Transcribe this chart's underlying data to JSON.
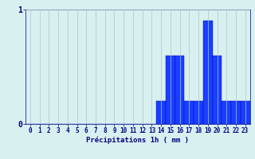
{
  "hours": [
    0,
    1,
    2,
    3,
    4,
    5,
    6,
    7,
    8,
    9,
    10,
    11,
    12,
    13,
    14,
    15,
    16,
    17,
    18,
    19,
    20,
    21,
    22,
    23
  ],
  "values": [
    0,
    0,
    0,
    0,
    0,
    0,
    0,
    0,
    0,
    0,
    0,
    0,
    0,
    0,
    0.2,
    0.6,
    0.6,
    0.2,
    0.2,
    0.9,
    0.6,
    0.2,
    0.2,
    0.2
  ],
  "bar_color": "#1a3fff",
  "bar_edge_color": "#0000bb",
  "background_color": "#d8f0f0",
  "grid_color": "#aac8c8",
  "axis_color": "#000080",
  "xlabel": "Précipitations 1h ( mm )",
  "ylim": [
    0,
    1.0
  ],
  "yticks": [
    0,
    1
  ],
  "xlim": [
    -0.5,
    23.5
  ],
  "tick_fontsize": 5.5,
  "ylabel_fontsize": 6.5
}
